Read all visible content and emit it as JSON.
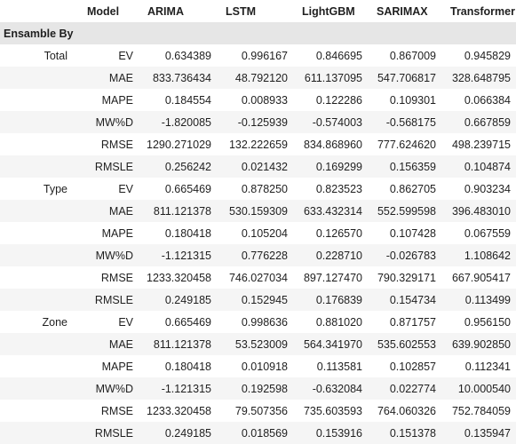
{
  "header": {
    "model_label": "Model",
    "columns": [
      "ARIMA",
      "LSTM",
      "LightGBM",
      "SARIMAX",
      "Transformer"
    ],
    "index_label": "Ensamble By"
  },
  "groups": [
    {
      "name": "Total",
      "rows": [
        {
          "metric": "EV",
          "values": [
            "0.634389",
            "0.996167",
            "0.846695",
            "0.867009",
            "0.945829"
          ]
        },
        {
          "metric": "MAE",
          "values": [
            "833.736434",
            "48.792120",
            "611.137095",
            "547.706817",
            "328.648795"
          ]
        },
        {
          "metric": "MAPE",
          "values": [
            "0.184554",
            "0.008933",
            "0.122286",
            "0.109301",
            "0.066384"
          ]
        },
        {
          "metric": "MW%D",
          "values": [
            "-1.820085",
            "-0.125939",
            "-0.574003",
            "-0.568175",
            "0.667859"
          ]
        },
        {
          "metric": "RMSE",
          "values": [
            "1290.271029",
            "132.222659",
            "834.868960",
            "777.624620",
            "498.239715"
          ]
        },
        {
          "metric": "RMSLE",
          "values": [
            "0.256242",
            "0.021432",
            "0.169299",
            "0.156359",
            "0.104874"
          ]
        }
      ]
    },
    {
      "name": "Type",
      "rows": [
        {
          "metric": "EV",
          "values": [
            "0.665469",
            "0.878250",
            "0.823523",
            "0.862705",
            "0.903234"
          ]
        },
        {
          "metric": "MAE",
          "values": [
            "811.121378",
            "530.159309",
            "633.432314",
            "552.599598",
            "396.483010"
          ]
        },
        {
          "metric": "MAPE",
          "values": [
            "0.180418",
            "0.105204",
            "0.126570",
            "0.107428",
            "0.067559"
          ]
        },
        {
          "metric": "MW%D",
          "values": [
            "-1.121315",
            "0.776228",
            "0.228710",
            "-0.026783",
            "1.108642"
          ]
        },
        {
          "metric": "RMSE",
          "values": [
            "1233.320458",
            "746.027034",
            "897.127470",
            "790.329171",
            "667.905417"
          ]
        },
        {
          "metric": "RMSLE",
          "values": [
            "0.249185",
            "0.152945",
            "0.176839",
            "0.154734",
            "0.113499"
          ]
        }
      ]
    },
    {
      "name": "Zone",
      "rows": [
        {
          "metric": "EV",
          "values": [
            "0.665469",
            "0.998636",
            "0.881020",
            "0.871757",
            "0.956150"
          ]
        },
        {
          "metric": "MAE",
          "values": [
            "811.121378",
            "53.523009",
            "564.341970",
            "535.602553",
            "639.902850"
          ]
        },
        {
          "metric": "MAPE",
          "values": [
            "0.180418",
            "0.010918",
            "0.113581",
            "0.102857",
            "0.112341"
          ]
        },
        {
          "metric": "MW%D",
          "values": [
            "-1.121315",
            "0.192598",
            "-0.632084",
            "0.022774",
            "10.000540"
          ]
        },
        {
          "metric": "RMSE",
          "values": [
            "1233.320458",
            "79.507356",
            "735.603593",
            "764.060326",
            "752.784059"
          ]
        },
        {
          "metric": "RMSLE",
          "values": [
            "0.249185",
            "0.018569",
            "0.153916",
            "0.151378",
            "0.135947"
          ]
        }
      ]
    }
  ]
}
